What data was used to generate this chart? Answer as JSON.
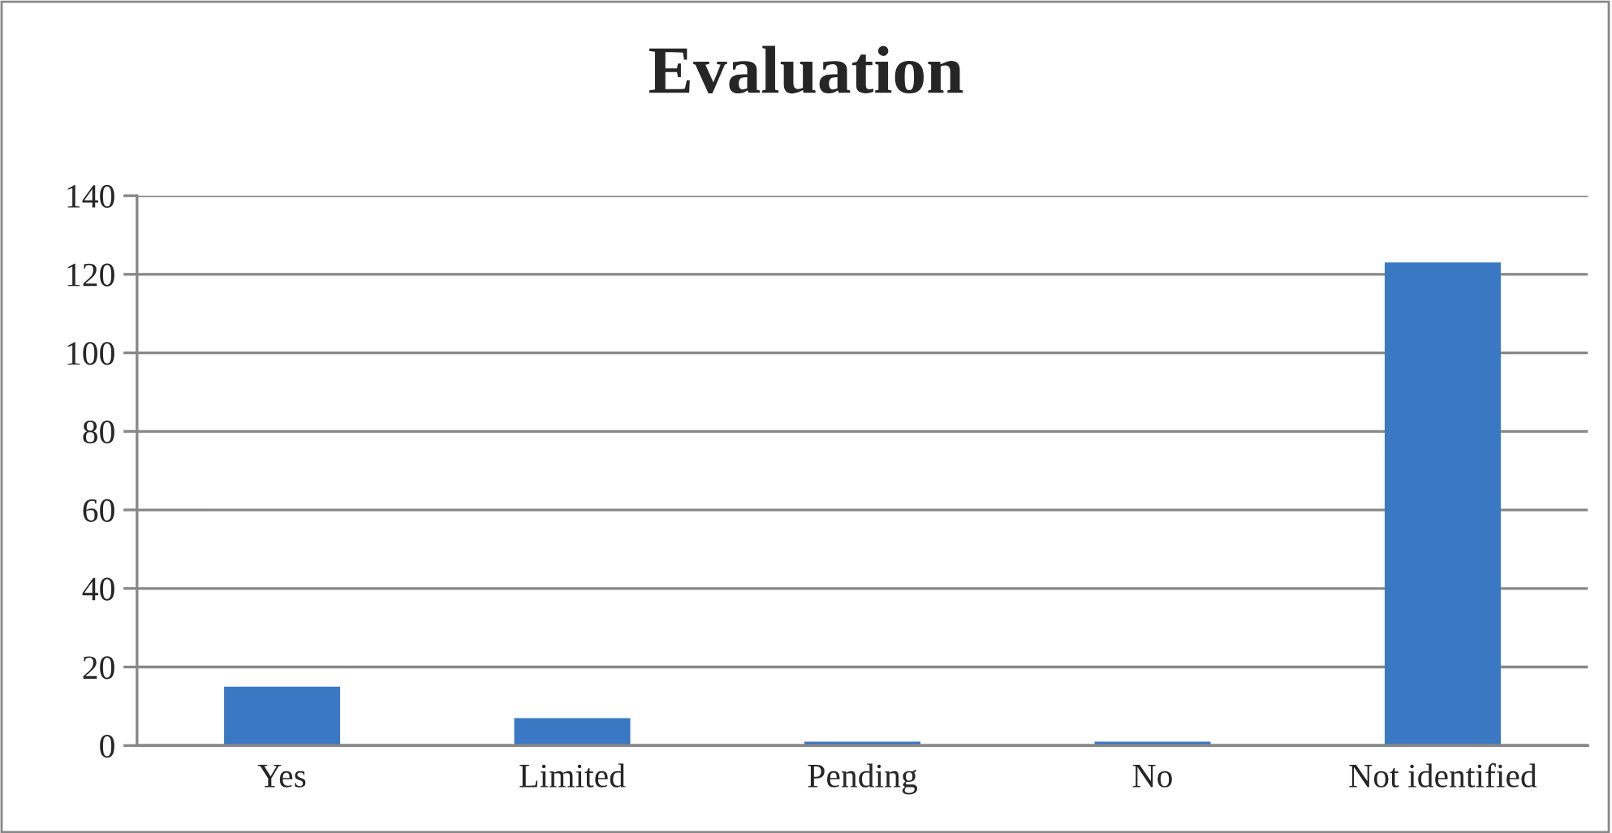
{
  "chart_data": {
    "type": "bar",
    "title": "Evaluation",
    "categories": [
      "Yes",
      "Limited",
      "Pending",
      "No",
      "Not identified"
    ],
    "values": [
      15,
      7,
      1,
      1,
      123
    ],
    "color": "#3a78c4",
    "ylim": [
      0,
      140
    ],
    "yticks": [
      0,
      20,
      40,
      60,
      80,
      100,
      120,
      140
    ],
    "grid": "y"
  }
}
